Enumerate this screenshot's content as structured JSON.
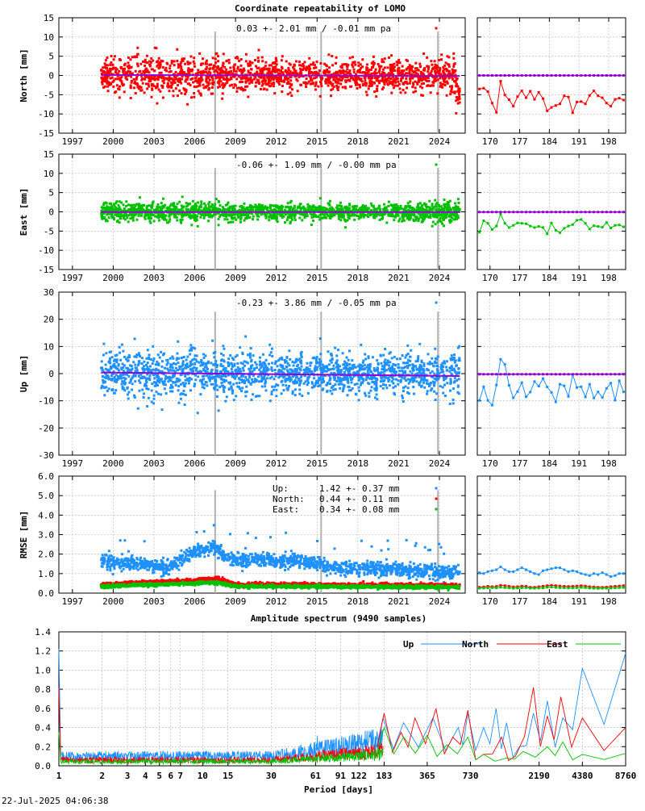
{
  "title": "Coordinate repeatability of LOMO",
  "timestamp": "22-Jul-2025 04:06:38",
  "colors": {
    "north": "#ff0000",
    "east": "#00c000",
    "up": "#1e90ff",
    "trend": "#9400d3",
    "vline": "#b0b0b0"
  },
  "chart_data": [
    {
      "type": "scatter",
      "id": "north",
      "ylabel": "North [mm]",
      "ylim": [
        -15,
        15
      ],
      "yticks": [
        15,
        10,
        5,
        0,
        -5,
        -10,
        -15
      ],
      "xlim": [
        1996.0,
        2025.9
      ],
      "xticks": [
        1997,
        2000,
        2003,
        2006,
        2009,
        2012,
        2015,
        2018,
        2021,
        2024
      ],
      "data_start": 1999.1,
      "data_end": 2025.5,
      "spread_profile": [
        [
          1999.1,
          2.0
        ],
        [
          2002.5,
          2.6
        ],
        [
          2006.5,
          2.3
        ],
        [
          2015,
          1.8
        ],
        [
          2022,
          1.9
        ],
        [
          2025.5,
          2.6
        ]
      ],
      "annotation": "0.03 +- 2.01 mm / -0.01 mm pa",
      "trend": [
        0.0,
        -0.01
      ],
      "zoom_xlim": [
        167,
        202
      ],
      "zoom_xticks": [
        170,
        177,
        184,
        191,
        198
      ],
      "zoom_values": [
        -3.5,
        -3.3,
        -4.2,
        -7.2,
        -9.6,
        -1.5,
        -5.1,
        -6.3,
        -8.0,
        -5.5,
        -4.0,
        -5.8,
        -4.1,
        -6.2,
        -4.4,
        -6.0,
        -9.2,
        -8.3,
        -7.8,
        -7.4,
        -5.3,
        -5.6,
        -9.7,
        -6.9,
        -6.8,
        -7.4,
        -5.2,
        -4.0,
        -5.3,
        -5.8,
        -7.2,
        -8.0,
        -6.2,
        -5.9,
        -6.4
      ]
    },
    {
      "type": "scatter",
      "id": "east",
      "ylabel": "East [mm]",
      "ylim": [
        -15,
        15
      ],
      "yticks": [
        15,
        10,
        5,
        0,
        -5,
        -10,
        -15
      ],
      "xlim": [
        1996.0,
        2025.9
      ],
      "xticks": [
        1997,
        2000,
        2003,
        2006,
        2009,
        2012,
        2015,
        2018,
        2021,
        2024
      ],
      "data_start": 1999.1,
      "data_end": 2025.5,
      "spread_profile": [
        [
          1999.1,
          1.1
        ],
        [
          2003,
          1.3
        ],
        [
          2010,
          1.0
        ],
        [
          2020,
          1.0
        ],
        [
          2025.5,
          1.4
        ]
      ],
      "annotation": "-0.06 +- 1.09 mm / -0.00 mm pa",
      "trend": [
        -0.06,
        0.0
      ],
      "zoom_xlim": [
        167,
        202
      ],
      "zoom_xticks": [
        170,
        177,
        184,
        191,
        198
      ],
      "zoom_values": [
        -5.3,
        -2.3,
        -3.0,
        -4.6,
        -3.7,
        -0.6,
        -3.0,
        -4.1,
        -3.5,
        -2.9,
        -3.0,
        -3.1,
        -3.7,
        -4.1,
        -3.8,
        -4.1,
        -5.7,
        -2.9,
        -4.8,
        -5.4,
        -4.3,
        -3.7,
        -3.3,
        -2.2,
        -2.0,
        -3.0,
        -4.5,
        -3.6,
        -3.8,
        -4.0,
        -2.8,
        -4.2,
        -3.5,
        -3.4,
        -3.9
      ]
    },
    {
      "type": "scatter",
      "id": "up",
      "ylabel": "Up [mm]",
      "ylim": [
        -30,
        30
      ],
      "yticks": [
        30,
        20,
        10,
        0,
        -10,
        -20,
        -30
      ],
      "xlim": [
        1996.0,
        2025.9
      ],
      "xticks": [
        1997,
        2000,
        2003,
        2006,
        2009,
        2012,
        2015,
        2018,
        2021,
        2024
      ],
      "data_start": 1999.1,
      "data_end": 2025.5,
      "spread_profile": [
        [
          1999.1,
          4.2
        ],
        [
          2006.5,
          4.5
        ],
        [
          2012,
          3.8
        ],
        [
          2020,
          3.5
        ],
        [
          2025.5,
          4.0
        ]
      ],
      "annotation": "-0.23 +- 3.86 mm / -0.05 mm pa",
      "trend": [
        -0.23,
        -0.05
      ],
      "zoom_xlim": [
        167,
        202
      ],
      "zoom_xticks": [
        170,
        177,
        184,
        191,
        198
      ],
      "zoom_values": [
        -9.9,
        -4.8,
        -9.9,
        -11.6,
        -4.2,
        5.3,
        3.4,
        -4.3,
        -8.9,
        -6.6,
        -3.3,
        -8.5,
        -6.8,
        -2.9,
        -4.6,
        -1.8,
        -4.9,
        -6.9,
        -10.4,
        -3.9,
        -4.5,
        -8.4,
        -0.3,
        -5.1,
        -4.8,
        -8.6,
        -3.9,
        -9.0,
        -6.7,
        -8.8,
        -5.4,
        -3.5,
        -9.8,
        -2.6,
        -6.7
      ]
    },
    {
      "type": "scatter",
      "id": "rmse",
      "ylabel": "RMSE [mm]",
      "ylim": [
        0,
        6
      ],
      "yticks": [
        6.0,
        5.0,
        4.0,
        3.0,
        2.0,
        1.0,
        0.0
      ],
      "xlim": [
        1996.0,
        2025.9
      ],
      "xticks": [
        1997,
        2000,
        2003,
        2006,
        2009,
        2012,
        2015,
        2018,
        2021,
        2024
      ],
      "data_start": 1999.1,
      "data_end": 2025.5,
      "legend": [
        {
          "name": "Up:",
          "value": "1.42 +- 0.37 mm"
        },
        {
          "name": "North:",
          "value": "0.44 +- 0.11 mm"
        },
        {
          "name": "East:",
          "value": "0.34 +- 0.08 mm"
        }
      ],
      "level_profiles": {
        "up": [
          [
            1999.1,
            1.6
          ],
          [
            2002,
            1.5
          ],
          [
            2004,
            1.3
          ],
          [
            2006.0,
            2.1
          ],
          [
            2007.5,
            2.4
          ],
          [
            2008.5,
            1.7
          ],
          [
            2012,
            1.7
          ],
          [
            2014.5,
            1.6
          ],
          [
            2016,
            1.3
          ],
          [
            2020,
            1.25
          ],
          [
            2025.5,
            1.0
          ]
        ],
        "north": [
          [
            1999.1,
            0.45
          ],
          [
            2006.0,
            0.65
          ],
          [
            2007.5,
            0.75
          ],
          [
            2009,
            0.45
          ],
          [
            2025.5,
            0.38
          ]
        ],
        "east": [
          [
            1999.1,
            0.35
          ],
          [
            2006.0,
            0.5
          ],
          [
            2007.5,
            0.55
          ],
          [
            2009,
            0.35
          ],
          [
            2025.5,
            0.3
          ]
        ]
      },
      "zoom_xlim": [
        167,
        202
      ],
      "zoom_xticks": [
        170,
        177,
        184,
        191,
        198
      ],
      "zoom_up": [
        1.05,
        1.0,
        1.1,
        1.15,
        1.2,
        1.35,
        1.2,
        1.1,
        1.1,
        1.2,
        1.3,
        1.2,
        1.1,
        1.0,
        0.95,
        1.15,
        1.2,
        1.25,
        1.3,
        1.3,
        1.2,
        1.1,
        1.15,
        1.1,
        1.0,
        0.95,
        0.9,
        1.0,
        0.95,
        1.05,
        0.95,
        0.85,
        0.9,
        1.0,
        1.0
      ],
      "zoom_north": [
        0.3,
        0.32,
        0.35,
        0.33,
        0.34,
        0.4,
        0.38,
        0.35,
        0.32,
        0.33,
        0.36,
        0.35,
        0.3,
        0.3,
        0.33,
        0.35,
        0.38,
        0.4,
        0.38,
        0.36,
        0.35,
        0.34,
        0.35,
        0.36,
        0.38,
        0.36,
        0.33,
        0.32,
        0.3,
        0.3,
        0.31,
        0.33,
        0.35,
        0.36,
        0.38
      ],
      "zoom_east": [
        0.25,
        0.26,
        0.27,
        0.28,
        0.27,
        0.3,
        0.28,
        0.27,
        0.25,
        0.26,
        0.27,
        0.28,
        0.25,
        0.25,
        0.26,
        0.27,
        0.3,
        0.31,
        0.29,
        0.28,
        0.27,
        0.26,
        0.27,
        0.28,
        0.29,
        0.28,
        0.26,
        0.25,
        0.24,
        0.25,
        0.25,
        0.26,
        0.27,
        0.28,
        0.29
      ]
    },
    {
      "type": "line",
      "id": "spectrum",
      "title": "Amplitude spectrum (9490 samples)",
      "xlabel": "Period [days]",
      "xscale": "log",
      "xlim": [
        1,
        8760
      ],
      "xticks": [
        1,
        2,
        3,
        4,
        5,
        6,
        7,
        10,
        15,
        30,
        61,
        91,
        122,
        183,
        365,
        730,
        2190,
        4380,
        8760
      ],
      "ylim": [
        0,
        1.4
      ],
      "yticks": [
        1.4,
        1.2,
        1.0,
        0.8,
        0.6,
        0.4,
        0.2,
        0.0
      ],
      "series": [
        {
          "name": "Up",
          "key": "up",
          "peaks": [
            [
              1,
              1.22
            ],
            [
              180,
              0.5
            ],
            [
              250,
              0.45
            ],
            [
              400,
              0.5
            ],
            [
              600,
              0.4
            ],
            [
              700,
              0.55
            ],
            [
              900,
              0.4
            ],
            [
              1100,
              0.6
            ],
            [
              1300,
              0.45
            ],
            [
              1600,
              0.2
            ],
            [
              2000,
              0.55
            ],
            [
              2500,
              0.68
            ],
            [
              3200,
              0.5
            ],
            [
              4380,
              1.02
            ],
            [
              8760,
              1.18
            ]
          ]
        },
        {
          "name": "North",
          "key": "north",
          "peaks": [
            [
              1,
              0.82
            ],
            [
              183,
              0.55
            ],
            [
              240,
              0.35
            ],
            [
              300,
              0.5
            ],
            [
              420,
              0.6
            ],
            [
              550,
              0.3
            ],
            [
              700,
              0.58
            ],
            [
              900,
              0.12
            ],
            [
              1200,
              0.3
            ],
            [
              1500,
              0.1
            ],
            [
              2000,
              0.82
            ],
            [
              2500,
              0.52
            ],
            [
              3100,
              0.72
            ],
            [
              4380,
              0.5
            ],
            [
              8760,
              0.4
            ]
          ]
        },
        {
          "name": "East",
          "key": "east",
          "peaks": [
            [
              1,
              0.35
            ],
            [
              183,
              0.4
            ],
            [
              250,
              0.3
            ],
            [
              365,
              0.32
            ],
            [
              500,
              0.22
            ],
            [
              700,
              0.3
            ],
            [
              900,
              0.12
            ],
            [
              1300,
              0.08
            ],
            [
              1700,
              0.15
            ],
            [
              2500,
              0.2
            ],
            [
              3200,
              0.25
            ],
            [
              4380,
              0.12
            ],
            [
              8760,
              0.13
            ]
          ]
        }
      ]
    }
  ],
  "vertical_markers": [
    2007.5,
    2015.3,
    2023.9
  ]
}
